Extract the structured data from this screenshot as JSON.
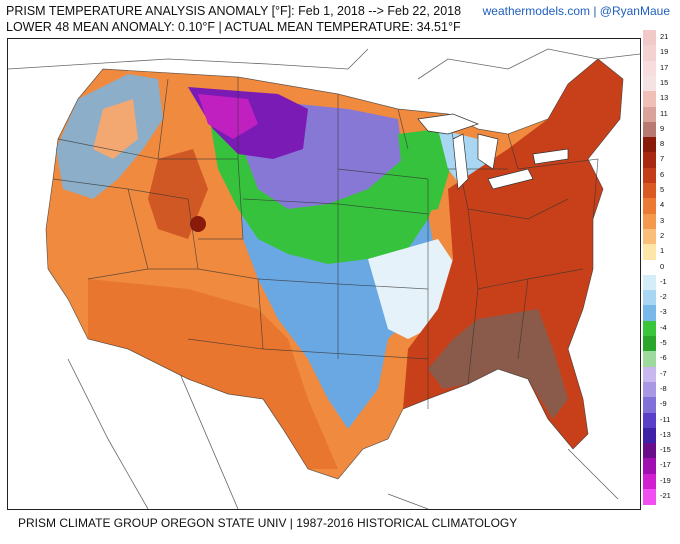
{
  "header": {
    "line1": "PRISM TEMPERATURE ANALYSIS ANOMALY [°F]: Feb 1, 2018 --> Feb 22, 2018",
    "line2": "LOWER 48 MEAN ANOMALY: 0.10°F | ACTUAL MEAN TEMPERATURE: 34.51°F"
  },
  "credit": "weathermodels.com | @RyanMaue",
  "footer": "PRISM CLIMATE GROUP OREGON STATE UNIV | 1987-2016 HISTORICAL CLIMATOLOGY",
  "legend": {
    "labels": [
      "21",
      "19",
      "17",
      "15",
      "13",
      "11",
      "9",
      "8",
      "7",
      "6",
      "5",
      "4",
      "3",
      "2",
      "1",
      "0",
      "-1",
      "-2",
      "-3",
      "-4",
      "-5",
      "-6",
      "-7",
      "-8",
      "-9",
      "-11",
      "-13",
      "-15",
      "-17",
      "-19",
      "-21"
    ],
    "colors": [
      "#f2c9c9",
      "#f4d2d2",
      "#f7dddd",
      "#f5e3e3",
      "#f0c0b8",
      "#d9a39b",
      "#b87a70",
      "#8a1a0a",
      "#a82810",
      "#c23d18",
      "#d95a22",
      "#ea7a34",
      "#f39a4e",
      "#f9bf7a",
      "#fce6a8",
      "#ffffff",
      "#d5ecf9",
      "#a9d6f2",
      "#78b9ea",
      "#3bc53b",
      "#2aa62a",
      "#9ed99e",
      "#c8b8ef",
      "#a898e4",
      "#8070d8",
      "#5a40c8",
      "#3d22a8",
      "#6a0d8a",
      "#a010b0",
      "#d020d0",
      "#f050f0"
    ]
  },
  "map": {
    "regions": [
      {
        "name": "pacific-northwest",
        "color": "#7ab4e0"
      },
      {
        "name": "west",
        "color": "#ef8a3f"
      },
      {
        "name": "rockies-hot",
        "color": "#b8431c"
      },
      {
        "name": "northern-plains-cold",
        "color": "#7a1bb5"
      },
      {
        "name": "upper-midwest-cold",
        "color": "#8878d6"
      },
      {
        "name": "great-lakes-green",
        "color": "#36c23c"
      },
      {
        "name": "central-plains-cold",
        "color": "#6aa8e4"
      },
      {
        "name": "midwest-neutral",
        "color": "#d9ecf8"
      },
      {
        "name": "southwest",
        "color": "#f09040"
      },
      {
        "name": "east",
        "color": "#c8401a"
      },
      {
        "name": "southeast-warmest",
        "color": "#8a5a4a"
      }
    ]
  }
}
